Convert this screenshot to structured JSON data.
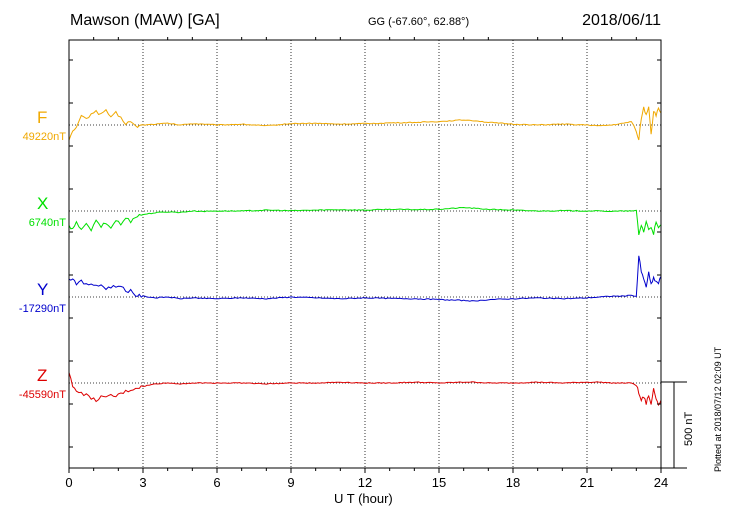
{
  "header": {
    "station": "Mawson (MAW)  [GA]",
    "coords": "GG (-67.60°,  62.88°)",
    "date": "2018/06/11"
  },
  "footer": {
    "plotted": "Plotted at 2018/07/12 02:09 UT"
  },
  "colors": {
    "F": "#f0a800",
    "X": "#00e000",
    "Y": "#0000cc",
    "Z": "#dd0000"
  },
  "chart_data": {
    "type": "line",
    "title": "Mawson (MAW)  [GA]",
    "xlabel": "U T (hour)",
    "ylabel": "",
    "xlim": [
      0,
      24
    ],
    "xticks": [
      "0",
      "3",
      "6",
      "9",
      "12",
      "15",
      "18",
      "21",
      "24"
    ],
    "grid": "vertical dotted lines at 3-hour intervals, dotted baseline per component",
    "scale_bar": {
      "label": "500 nT",
      "value_nT": 500
    },
    "series": [
      {
        "name": "F",
        "baseline_label": "49220nT",
        "baseline_nT": 49220,
        "x": [
          0,
          0.15,
          0.3,
          0.5,
          0.7,
          0.9,
          1.1,
          1.3,
          1.5,
          1.7,
          1.9,
          2.1,
          2.3,
          2.5,
          2.7,
          3.0,
          3.5,
          4.0,
          4.5,
          5.0,
          5.5,
          6.0,
          7.0,
          8.0,
          9.0,
          10.0,
          11.0,
          12.0,
          13.0,
          14.0,
          15.0,
          16.0,
          16.5,
          17.0,
          18.0,
          19.0,
          20.0,
          21.0,
          21.5,
          22.0,
          22.5,
          22.8,
          23.0,
          23.1,
          23.2,
          23.3,
          23.4,
          23.5,
          23.6,
          23.7,
          23.8,
          23.9,
          24.0
        ],
        "values": [
          -80,
          -40,
          -20,
          60,
          30,
          70,
          80,
          60,
          90,
          40,
          70,
          40,
          10,
          20,
          -10,
          0,
          5,
          10,
          0,
          8,
          5,
          0,
          5,
          -5,
          8,
          10,
          5,
          8,
          12,
          15,
          20,
          30,
          25,
          15,
          5,
          0,
          5,
          0,
          -5,
          0,
          10,
          20,
          -30,
          -90,
          40,
          100,
          60,
          110,
          -50,
          80,
          60,
          90,
          70
        ]
      },
      {
        "name": "X",
        "baseline_label": "6740nT",
        "baseline_nT": 6740,
        "x": [
          0,
          0.15,
          0.3,
          0.5,
          0.7,
          0.9,
          1.1,
          1.3,
          1.5,
          1.7,
          1.9,
          2.1,
          2.3,
          2.5,
          2.7,
          3.0,
          3.5,
          4.0,
          4.5,
          5.0,
          5.5,
          6.0,
          7.0,
          8.0,
          9.0,
          10.0,
          11.0,
          12.0,
          13.0,
          14.0,
          15.0,
          16.0,
          16.5,
          17.0,
          18.0,
          19.0,
          20.0,
          21.0,
          21.5,
          22.0,
          22.5,
          22.8,
          23.0,
          23.1,
          23.2,
          23.3,
          23.4,
          23.5,
          23.6,
          23.7,
          23.8,
          23.9,
          24.0
        ],
        "values": [
          -90,
          -110,
          -70,
          -100,
          -80,
          -110,
          -60,
          -90,
          -70,
          -100,
          -50,
          -80,
          -40,
          -60,
          -30,
          -20,
          -10,
          -5,
          -8,
          0,
          -2,
          0,
          0,
          5,
          2,
          5,
          8,
          5,
          10,
          8,
          10,
          20,
          15,
          10,
          5,
          0,
          2,
          0,
          0,
          -2,
          0,
          0,
          0,
          -140,
          -80,
          -120,
          -60,
          -110,
          -90,
          -130,
          -70,
          -100,
          -80
        ]
      },
      {
        "name": "Y",
        "baseline_label": "-17290nT",
        "baseline_nT": -17290,
        "x": [
          0,
          0.15,
          0.3,
          0.5,
          0.7,
          0.9,
          1.1,
          1.3,
          1.5,
          1.7,
          1.9,
          2.1,
          2.3,
          2.5,
          2.7,
          3.0,
          3.5,
          4.0,
          4.5,
          5.0,
          5.5,
          6.0,
          7.0,
          8.0,
          9.0,
          10.0,
          11.0,
          12.0,
          13.0,
          14.0,
          15.0,
          16.0,
          16.5,
          17.0,
          18.0,
          19.0,
          20.0,
          21.0,
          21.5,
          22.0,
          22.5,
          22.8,
          23.0,
          23.1,
          23.2,
          23.3,
          23.4,
          23.5,
          23.6,
          23.7,
          23.8,
          23.9,
          24.0
        ],
        "values": [
          100,
          110,
          80,
          90,
          70,
          80,
          60,
          70,
          50,
          60,
          60,
          70,
          30,
          40,
          10,
          5,
          -5,
          0,
          -10,
          -5,
          -8,
          -10,
          -5,
          -10,
          0,
          -5,
          -10,
          -5,
          -8,
          -10,
          -15,
          -20,
          -25,
          -15,
          -10,
          -5,
          -10,
          -5,
          0,
          5,
          5,
          10,
          5,
          240,
          150,
          100,
          60,
          140,
          70,
          110,
          90,
          80,
          120
        ]
      },
      {
        "name": "Z",
        "baseline_label": "-45590nT",
        "baseline_nT": -45590,
        "x": [
          0,
          0.15,
          0.3,
          0.5,
          0.7,
          0.9,
          1.1,
          1.3,
          1.5,
          1.7,
          1.9,
          2.1,
          2.3,
          2.5,
          2.7,
          3.0,
          3.5,
          4.0,
          4.5,
          5.0,
          5.5,
          6.0,
          7.0,
          8.0,
          9.0,
          10.0,
          11.0,
          12.0,
          13.0,
          14.0,
          15.0,
          16.0,
          16.5,
          17.0,
          18.0,
          19.0,
          20.0,
          21.0,
          21.5,
          22.0,
          22.5,
          22.8,
          23.0,
          23.1,
          23.2,
          23.3,
          23.4,
          23.5,
          23.6,
          23.7,
          23.8,
          23.9,
          24.0
        ],
        "values": [
          60,
          -20,
          -40,
          -60,
          -70,
          -90,
          -100,
          -80,
          -90,
          -70,
          -80,
          -60,
          -50,
          -40,
          -30,
          -20,
          -5,
          0,
          -5,
          0,
          0,
          0,
          0,
          -5,
          0,
          0,
          5,
          0,
          0,
          5,
          0,
          5,
          5,
          0,
          0,
          5,
          0,
          5,
          5,
          0,
          0,
          0,
          -10,
          -60,
          -100,
          -80,
          -120,
          -70,
          -130,
          -30,
          -90,
          -120,
          -100
        ]
      }
    ]
  }
}
